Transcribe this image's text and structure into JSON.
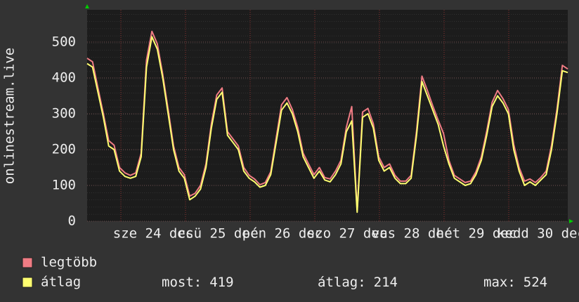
{
  "chart_data": {
    "type": "line",
    "y_label": "onlinestream.live",
    "xlabels": [
      "sze 24 dec",
      "csü 25 dec",
      "pén 26 dec",
      "szo 27 dec",
      "vas 28 dec",
      "hét 29 dec",
      "kedd 30 dec"
    ],
    "ylim": [
      0,
      590
    ],
    "yticks": [
      0,
      100,
      200,
      300,
      400,
      500
    ],
    "grid": true,
    "series": [
      {
        "name": "legtöbb",
        "color": "#f07c84",
        "values": [
          455,
          445,
          372,
          300,
          225,
          212,
          150,
          135,
          128,
          135,
          190,
          450,
          530,
          495,
          410,
          312,
          210,
          150,
          130,
          70,
          78,
          100,
          160,
          272,
          352,
          372,
          250,
          230,
          210,
          150,
          128,
          118,
          102,
          108,
          138,
          232,
          325,
          345,
          312,
          262,
          190,
          160,
          130,
          150,
          122,
          118,
          140,
          170,
          262,
          320,
          30,
          305,
          315,
          272,
          180,
          150,
          160,
          128,
          112,
          112,
          128,
          252,
          405,
          365,
          322,
          282,
          245,
          170,
          128,
          118,
          108,
          112,
          138,
          180,
          252,
          332,
          365,
          342,
          312,
          215,
          150,
          112,
          118,
          108,
          122,
          140,
          212,
          312,
          435,
          425
        ]
      },
      {
        "name": "átlag",
        "color": "#ffff70",
        "values": [
          440,
          430,
          360,
          290,
          210,
          200,
          140,
          125,
          120,
          125,
          180,
          430,
          515,
          480,
          400,
          300,
          200,
          140,
          120,
          60,
          70,
          90,
          150,
          260,
          340,
          360,
          240,
          220,
          200,
          140,
          120,
          110,
          95,
          100,
          130,
          220,
          310,
          330,
          300,
          250,
          180,
          150,
          120,
          140,
          115,
          110,
          130,
          160,
          250,
          280,
          25,
          290,
          300,
          260,
          170,
          140,
          150,
          120,
          105,
          105,
          120,
          240,
          390,
          350,
          310,
          270,
          210,
          160,
          120,
          110,
          100,
          105,
          130,
          170,
          240,
          320,
          350,
          330,
          300,
          200,
          140,
          100,
          110,
          100,
          115,
          130,
          200,
          300,
          420,
          415
        ]
      }
    ],
    "stats": [
      {
        "label": "most:",
        "value": 419
      },
      {
        "label": "átlag:",
        "value": 214
      },
      {
        "label": "max:",
        "value": 524
      }
    ]
  }
}
